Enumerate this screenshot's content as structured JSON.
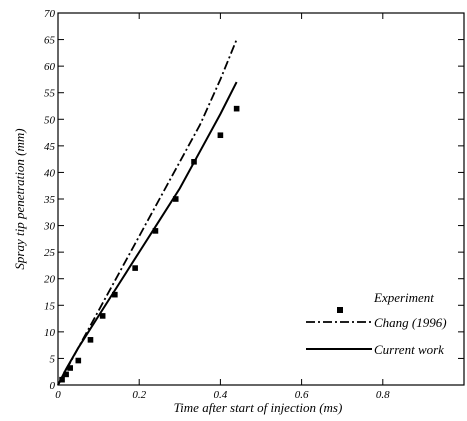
{
  "chart_data": {
    "type": "line",
    "title": "",
    "xlabel": "Time after start of injection (ms)",
    "ylabel": "Spray tip penetration (mm)",
    "xlim": [
      0,
      1
    ],
    "ylim": [
      0,
      70
    ],
    "x_ticks": [
      0,
      0.2,
      0.4,
      0.6,
      0.8
    ],
    "y_ticks": [
      0,
      5,
      10,
      15,
      20,
      25,
      30,
      35,
      40,
      45,
      50,
      55,
      60,
      65,
      70
    ],
    "grid": false,
    "legend": "bottom-right",
    "series": [
      {
        "name": "Experiment",
        "style": "square-markers",
        "color": "#000000",
        "x": [
          0.01,
          0.02,
          0.03,
          0.05,
          0.08,
          0.11,
          0.14,
          0.19,
          0.24,
          0.29,
          0.335,
          0.4,
          0.44
        ],
        "y": [
          1.0,
          2.0,
          3.2,
          4.6,
          8.5,
          13.0,
          17.0,
          22.0,
          29.0,
          35.0,
          42.0,
          47.0,
          52.0
        ]
      },
      {
        "name": "Chang (1996)",
        "style": "dash-dot",
        "color": "#000000",
        "x": [
          0,
          0.02,
          0.05,
          0.1,
          0.15,
          0.2,
          0.25,
          0.3,
          0.35,
          0.4,
          0.44
        ],
        "y": [
          0,
          2.8,
          7.0,
          14.0,
          21.0,
          28.0,
          35.0,
          42.0,
          49.0,
          57.5,
          65.0
        ]
      },
      {
        "name": "Current work",
        "style": "solid",
        "color": "#000000",
        "x": [
          0,
          0.02,
          0.05,
          0.1,
          0.15,
          0.2,
          0.25,
          0.3,
          0.35,
          0.4,
          0.44
        ],
        "y": [
          0,
          3.0,
          7.0,
          13.0,
          19.0,
          25.0,
          31.0,
          37.0,
          44.0,
          51.0,
          57.0
        ]
      }
    ]
  }
}
